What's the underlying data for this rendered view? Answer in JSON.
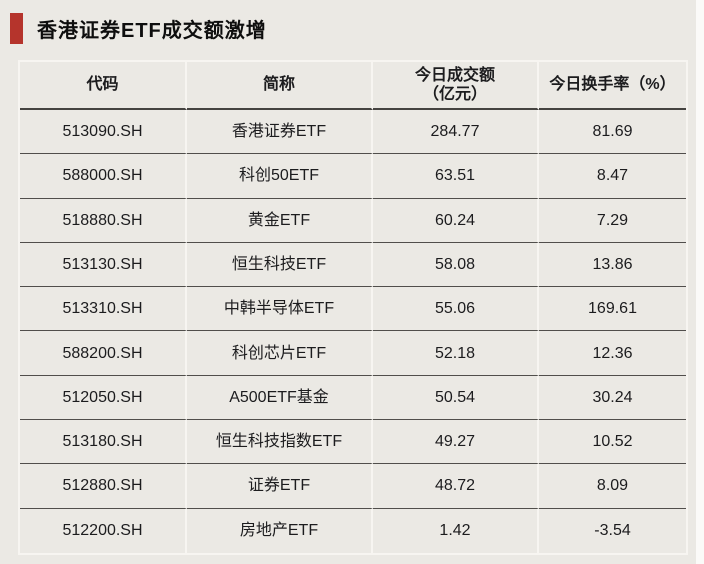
{
  "page": {
    "title": "香港证券ETF成交额激增"
  },
  "colors": {
    "background": "#ebe9e4",
    "accent_bar": "#b5342c",
    "text": "#1c1c1e",
    "dark_rule": "#504e4b",
    "light_rule": "#f7f5f1"
  },
  "table": {
    "columns": [
      {
        "label": "代码"
      },
      {
        "label": "简称"
      },
      {
        "label": "今日成交额\n（亿元）"
      },
      {
        "label": "今日换手率（%）"
      }
    ],
    "rows": [
      [
        "513090.SH",
        "香港证券ETF",
        "284.77",
        "81.69"
      ],
      [
        "588000.SH",
        "科创50ETF",
        "63.51",
        "8.47"
      ],
      [
        "518880.SH",
        "黄金ETF",
        "60.24",
        "7.29"
      ],
      [
        "513130.SH",
        "恒生科技ETF",
        "58.08",
        "13.86"
      ],
      [
        "513310.SH",
        "中韩半导体ETF",
        "55.06",
        "169.61"
      ],
      [
        "588200.SH",
        "科创芯片ETF",
        "52.18",
        "12.36"
      ],
      [
        "512050.SH",
        "A500ETF基金",
        "50.54",
        "30.24"
      ],
      [
        "513180.SH",
        "恒生科技指数ETF",
        "49.27",
        "10.52"
      ],
      [
        "512880.SH",
        "证券ETF",
        "48.72",
        "8.09"
      ],
      [
        "512200.SH",
        "房地产ETF",
        "1.42",
        "-3.54"
      ]
    ]
  }
}
